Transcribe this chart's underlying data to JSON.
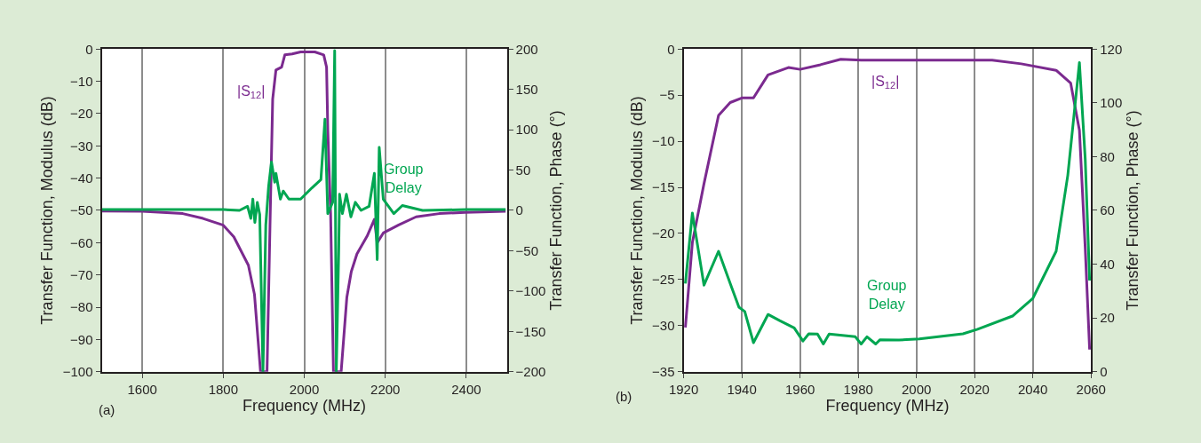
{
  "chart_data": [
    {
      "type": "line",
      "xlabel": "Frequency (MHz)",
      "ylabel": "Transfer Function, Modulus (dB)",
      "y2label": "Transfer Function, Phase (°)",
      "annotations": [
        "(a)"
      ],
      "grid": "x",
      "legend": false,
      "xlim": [
        1500,
        2500
      ],
      "xticks": [
        1600,
        1800,
        2000,
        2200,
        2400
      ],
      "ylim": [
        -100,
        0
      ],
      "yticks": [
        0,
        {
          "value": -10,
          "label": "−10"
        },
        {
          "value": -20,
          "label": "−20"
        },
        {
          "value": -30,
          "label": "−30"
        },
        {
          "value": -40,
          "label": "−40"
        },
        {
          "value": -50,
          "label": "−50"
        },
        {
          "value": -60,
          "label": "−60"
        },
        {
          "value": -70,
          "label": "−70"
        },
        {
          "value": -80,
          "label": "−80"
        },
        {
          "value": -90,
          "label": "−90"
        },
        {
          "value": -100,
          "label": "−100"
        }
      ],
      "y2lim": [
        -200,
        200
      ],
      "y2ticks": [
        200,
        150,
        100,
        50,
        0,
        {
          "value": -50,
          "label": "−50"
        },
        {
          "value": -100,
          "label": "−100"
        },
        {
          "value": -150,
          "label": "−150"
        },
        {
          "value": -200,
          "label": "−200"
        }
      ],
      "series": [
        {
          "name": "|S$_{12}$|",
          "color": "#7b2a8f",
          "x": [
            1500,
            1600,
            1700,
            1750,
            1800,
            1826,
            1862,
            1877,
            1892,
            1908,
            1916,
            1922,
            1930,
            1944,
            1952,
            1970,
            1991,
            2026,
            2048,
            2055,
            2058,
            2065,
            2072,
            2091,
            2105,
            2116,
            2130,
            2155,
            2173,
            2180,
            2195,
            2233,
            2276,
            2333,
            2397,
            2497
          ],
          "values": [
            -50.2,
            -50.3,
            -51,
            -52.5,
            -54.6,
            -58.2,
            -67,
            -76,
            -100,
            -100,
            -50.7,
            -15.5,
            -6.5,
            -5.6,
            -1.8,
            -1.5,
            -0.9,
            -0.9,
            -1.8,
            -5.6,
            -25,
            -51,
            -100,
            -100,
            -77,
            -69,
            -63.5,
            -58,
            -52.8,
            -60,
            -57,
            -54.5,
            -52,
            -51,
            -50.6,
            -50.3
          ]
        },
        {
          "name": "Group Delay",
          "color": "#00a651",
          "axis": "y2",
          "x": [
            1500,
            1600,
            1700,
            1800,
            1840,
            1860,
            1868,
            1873,
            1878,
            1884,
            1890,
            1898,
            1905,
            1912,
            1919,
            1927,
            1930,
            1941,
            1948,
            1962,
            1991,
            2019,
            2041,
            2051,
            2058,
            2070,
            2075,
            2079,
            2085,
            2087,
            2094,
            2104,
            2115,
            2126,
            2140,
            2160,
            2173,
            2180,
            2185,
            2195,
            2221,
            2242,
            2292,
            2400,
            2497
          ],
          "values": [
            1,
            1,
            1,
            1,
            0,
            5,
            -10,
            14,
            -15,
            10,
            -5,
            -200,
            -18,
            30,
            60,
            35,
            46,
            14,
            24,
            14,
            14,
            28,
            38,
            113,
            -4,
            10,
            198,
            -200,
            -50,
            20,
            -4,
            20,
            -8,
            10,
            0,
            5,
            46,
            -61,
            78,
            14,
            -4,
            6,
            0,
            1,
            1
          ]
        }
      ]
    },
    {
      "type": "line",
      "xlabel": "Frequency (MHz)",
      "ylabel": "Transfer Function, Modulus (dB)",
      "y2label": "Transfer Function, Phase (°)",
      "annotations": [
        "(b)"
      ],
      "grid": "x",
      "legend": false,
      "xlim": [
        1920,
        2060
      ],
      "xticks": [
        1920,
        1940,
        1960,
        1980,
        2000,
        2020,
        2040,
        2060
      ],
      "ylim": [
        -35,
        0
      ],
      "yticks": [
        0,
        {
          "value": -5,
          "label": "−5"
        },
        {
          "value": -10,
          "label": "−10"
        },
        {
          "value": -15,
          "label": "−15"
        },
        {
          "value": -20,
          "label": "−20"
        },
        {
          "value": -25,
          "label": "−25"
        },
        {
          "value": -30,
          "label": "−30"
        },
        {
          "value": -35,
          "label": "−35"
        }
      ],
      "y2lim": [
        0,
        120
      ],
      "y2ticks": [
        0,
        20,
        40,
        60,
        80,
        100,
        120
      ],
      "series": [
        {
          "name": "|S$_{12}$|",
          "color": "#7b2a8f",
          "x": [
            1920.6,
            1923,
            1927,
            1932,
            1936,
            1940,
            1944,
            1949,
            1956,
            1960,
            1967,
            1974,
            1981,
            1994,
            2026,
            2036,
            2048,
            2053,
            2056,
            2058,
            2059.5
          ],
          "values": [
            -30.2,
            -21,
            -14.6,
            -7.2,
            -5.8,
            -5.3,
            -5.3,
            -2.8,
            -2,
            -2.2,
            -1.7,
            -1.1,
            -1.2,
            -1.2,
            -1.2,
            -1.6,
            -2.3,
            -3.7,
            -8.8,
            -21.6,
            -32.6
          ]
        },
        {
          "name": "Group Delay",
          "color": "#00a651",
          "axis": "y2",
          "x": [
            1920.6,
            1923,
            1927,
            1932,
            1936,
            1939,
            1941,
            1944,
            1949,
            1953,
            1958,
            1961,
            1963,
            1966,
            1968,
            1970,
            1979,
            1981,
            1983,
            1986,
            1987.5,
            1994,
            2001,
            2016,
            2021,
            2033,
            2040,
            2048,
            2052,
            2056,
            2058,
            2059.5
          ],
          "values": [
            32.8,
            59,
            32.2,
            44.8,
            32.8,
            24,
            22.4,
            10.8,
            21.3,
            19,
            16.3,
            11.4,
            14.1,
            14,
            10.3,
            14,
            13,
            10.3,
            13,
            10.3,
            11.9,
            11.8,
            12.2,
            14.1,
            15.8,
            20.7,
            27.3,
            44.8,
            73,
            115,
            79,
            33.9
          ]
        }
      ]
    }
  ]
}
